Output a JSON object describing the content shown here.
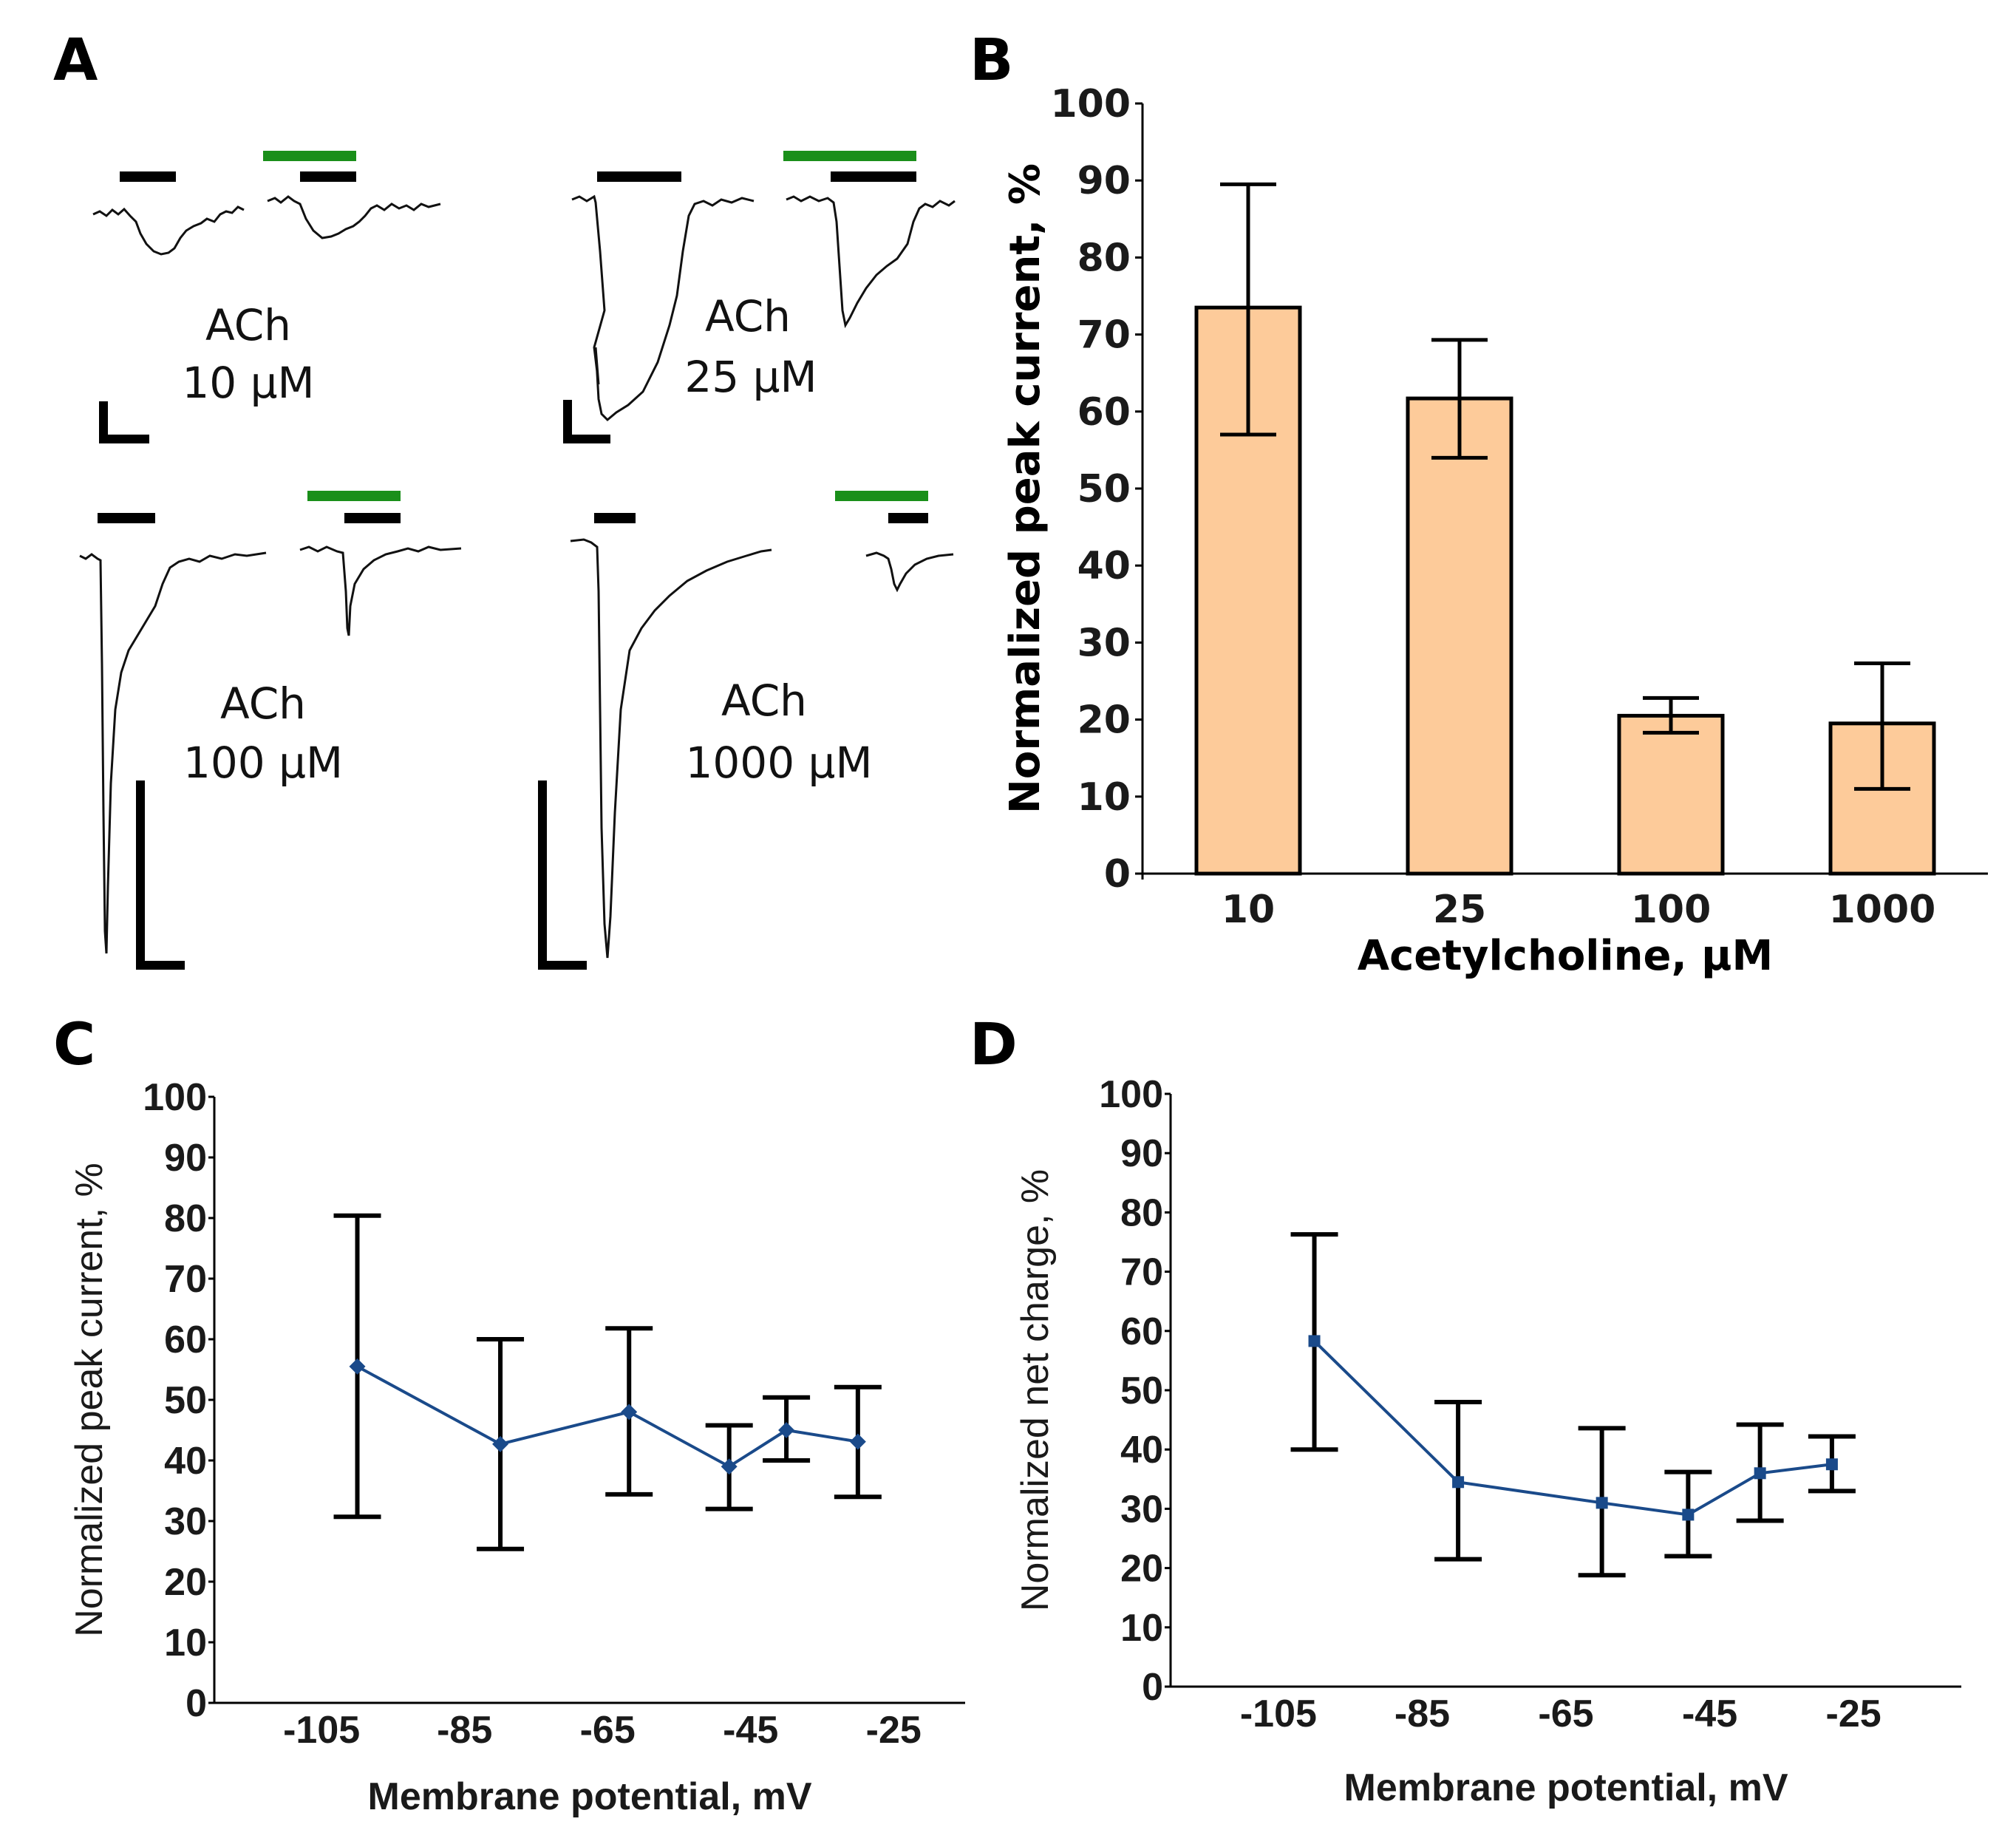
{
  "panels": {
    "A": {
      "letter": "A",
      "groups": [
        {
          "label": "ACh",
          "conc": "10 μM"
        },
        {
          "label": "ACh",
          "conc": "25 μM"
        },
        {
          "label": "ACh",
          "conc": "100 μM"
        },
        {
          "label": "ACh",
          "conc": "1000 μM"
        }
      ],
      "colors": {
        "trace": "#111111",
        "ach_bar": "#000000",
        "antagonist_bar": "#1a8f1a"
      }
    },
    "B": {
      "letter": "B"
    },
    "C": {
      "letter": "C"
    },
    "D": {
      "letter": "D"
    }
  },
  "chart_data": [
    {
      "panel": "B",
      "type": "bar",
      "categories": [
        "10",
        "25",
        "100",
        "1000"
      ],
      "values": [
        73.5,
        61.7,
        20.5,
        19.5
      ],
      "errors": [
        [
          57,
          89.5
        ],
        [
          54,
          69.3
        ],
        [
          18.3,
          22.8
        ],
        [
          11,
          27.3
        ]
      ],
      "xlabel": "Acetylcholine, μM",
      "ylabel": "Normalized peak current, %",
      "ylim": [
        0,
        100
      ],
      "yticks": [
        "0",
        "10",
        "20",
        "30",
        "40",
        "50",
        "60",
        "70",
        "80",
        "90",
        "100"
      ],
      "bar_color": "#FDCB9A"
    },
    {
      "panel": "C",
      "type": "line",
      "x": [
        -100,
        -80,
        -62,
        -48,
        -40,
        -30
      ],
      "y": [
        55.5,
        42.7,
        48,
        39,
        45,
        43.1
      ],
      "errors": [
        [
          30.7,
          80.4
        ],
        [
          25.4,
          60
        ],
        [
          34.4,
          61.8
        ],
        [
          32,
          45.8
        ],
        [
          40,
          50.4
        ],
        [
          34,
          52.1
        ]
      ],
      "xlabel": "Membrane potential, mV",
      "ylabel": "Normalized peak current, %",
      "xlim": [
        -120,
        -15
      ],
      "ylim": [
        0,
        100
      ],
      "xticks": [
        "-105",
        "-85",
        "-65",
        "-45",
        "-25"
      ],
      "yticks": [
        "0",
        "10",
        "20",
        "30",
        "40",
        "50",
        "60",
        "70",
        "80",
        "90",
        "100"
      ],
      "marker": "diamond",
      "line_color": "#1a4a8a"
    },
    {
      "panel": "D",
      "type": "line",
      "x": [
        -100,
        -80,
        -60,
        -48,
        -38,
        -28
      ],
      "y": [
        58.3,
        34.5,
        31,
        29,
        36,
        37.5
      ],
      "errors": [
        [
          40,
          76.3
        ],
        [
          21.5,
          48
        ],
        [
          18.8,
          43.6
        ],
        [
          22,
          36.2
        ],
        [
          28,
          44.2
        ],
        [
          33,
          42.2
        ]
      ],
      "xlabel": "Membrane potential, mV",
      "ylabel": "Normalized net charge, %",
      "xlim": [
        -120,
        -10
      ],
      "ylim": [
        0,
        100
      ],
      "xticks": [
        "-105",
        "-85",
        "-65",
        "-45",
        "-25"
      ],
      "yticks": [
        "0",
        "10",
        "20",
        "30",
        "40",
        "50",
        "60",
        "70",
        "80",
        "90",
        "100"
      ],
      "marker": "square",
      "line_color": "#1a4a8a"
    }
  ]
}
